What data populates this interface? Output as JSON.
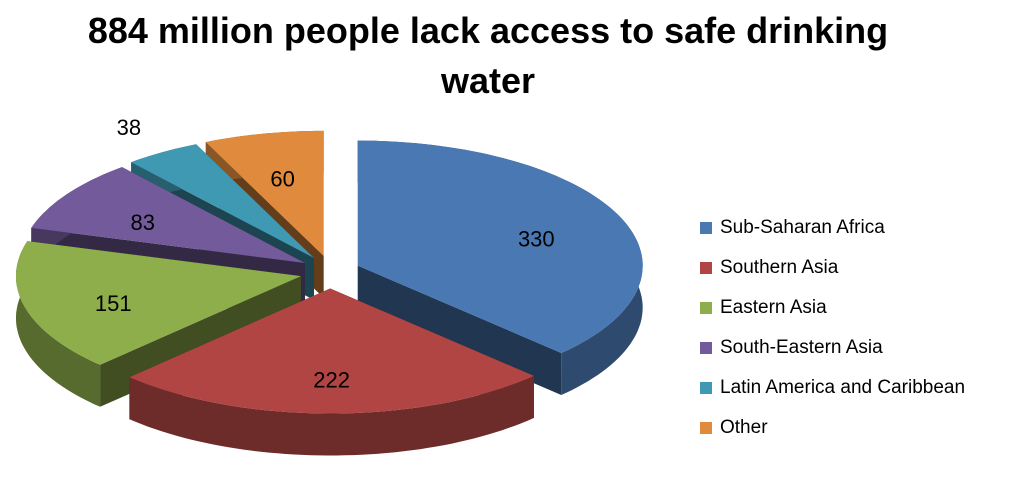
{
  "chart_data": {
    "type": "pie3d",
    "title": "884 million people lack access to safe drinking water",
    "categories": [
      "Sub-Saharan Africa",
      "Southern Asia",
      "Eastern Asia",
      "South-Eastern Asia",
      "Latin America and Caribbean",
      "Other"
    ],
    "values": [
      330,
      222,
      151,
      83,
      38,
      60
    ],
    "colors": [
      "#4a78b2",
      "#b04543",
      "#8ead4b",
      "#735a9a",
      "#3f99b3",
      "#df8a3d"
    ],
    "legend": "right"
  }
}
